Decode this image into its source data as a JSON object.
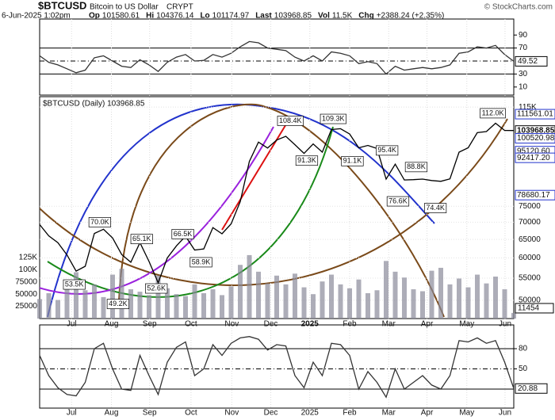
{
  "header": {
    "symbol": "$BTCUSD",
    "name": "Bitcoin to US Dollar",
    "exchange": "CRYPT",
    "date": "6-Jun-2025 1:02pm",
    "watermark": "© StockCharts.com",
    "stats": [
      {
        "label": "Op",
        "text": "101580.61"
      },
      {
        "label": "Hi",
        "text": "104376.14"
      },
      {
        "label": "Lo",
        "text": "101174.97"
      },
      {
        "label": "Last",
        "text": "103968.85"
      },
      {
        "label": "Vol",
        "text": "11.5K"
      },
      {
        "label": "Chg",
        "text": "+2388.24 (+2.35%)"
      }
    ]
  },
  "chart_data": [
    {
      "type": "line",
      "panel": "rsi",
      "color": "#333333",
      "values": [
        58,
        48,
        44,
        38,
        32,
        36,
        55,
        58,
        50,
        42,
        40,
        52,
        44,
        34,
        48,
        56,
        60,
        50,
        51,
        60,
        56,
        62,
        72,
        80,
        78,
        70,
        68,
        66,
        56,
        50,
        58,
        50,
        64,
        62,
        58,
        46,
        49,
        46,
        30,
        42,
        36,
        38,
        40,
        38,
        40,
        44,
        62,
        64,
        72,
        70,
        74,
        60,
        49.52
      ],
      "ylim": [
        0,
        100
      ],
      "yticks": [
        90,
        70,
        30,
        10
      ],
      "ref_lines": [
        70,
        50,
        30
      ],
      "last_value": 49.52
    },
    {
      "type": "line",
      "panel": "price",
      "color": "#000000",
      "log": true,
      "title": "$BTCUSD (Daily) 103968.85",
      "values": [
        69300,
        66000,
        64100,
        60800,
        56700,
        57900,
        66700,
        67900,
        65400,
        60900,
        58900,
        64100,
        59100,
        53900,
        60000,
        63200,
        65900,
        62100,
        62400,
        68400,
        66600,
        69500,
        76500,
        91000,
        98900,
        96400,
        99800,
        101400,
        97800,
        94200,
        98100,
        94700,
        104400,
        104800,
        102400,
        96500,
        97500,
        96200,
        84300,
        89900,
        84000,
        84100,
        84300,
        83800,
        83500,
        84400,
        94700,
        96500,
        103000,
        103500,
        107300,
        104000,
        103968.85
      ],
      "xlim": [
        0,
        52
      ],
      "xticks": [
        {
          "value": 3.5,
          "label": "Jul"
        },
        {
          "value": 7.87,
          "label": "Aug"
        },
        {
          "value": 12.06,
          "label": "Sep"
        },
        {
          "value": 16.6,
          "label": "Oct"
        },
        {
          "value": 21.07,
          "label": "Nov"
        },
        {
          "value": 25.35,
          "label": "Dec"
        },
        {
          "value": 29.63,
          "label": "2025"
        },
        {
          "value": 34.0,
          "label": "Feb"
        },
        {
          "value": 38.28,
          "label": "Mar"
        },
        {
          "value": 42.48,
          "label": "Apr"
        },
        {
          "value": 46.85,
          "label": "May"
        },
        {
          "value": 51.04,
          "label": "Jun"
        }
      ],
      "ylim": [
        46200,
        120300
      ],
      "yticks": [
        {
          "value": 115000,
          "label": "115K"
        },
        75000,
        70000,
        65000,
        60000,
        55000,
        50000
      ],
      "level_labels": [
        111561.01,
        103968.85,
        100520.98,
        {
          "value": 95120.6,
          "label": "95120.60"
        },
        {
          "value": 92417.2,
          "label": "92417.20"
        },
        78680.17
      ],
      "annotations": [
        {
          "label": "70.0K",
          "x": 6.6,
          "value": 70000
        },
        {
          "label": "65.1K",
          "x": 11.2,
          "value": 65100
        },
        {
          "label": "66.5K",
          "x": 15.7,
          "value": 66500
        },
        {
          "label": "108.4K",
          "x": 27.5,
          "value": 108400
        },
        {
          "label": "109.3K",
          "x": 32.2,
          "value": 109300
        },
        {
          "label": "95.4K",
          "x": 38.1,
          "value": 95400
        },
        {
          "label": "88.8K",
          "x": 41.3,
          "value": 88800
        },
        {
          "label": "112.0K",
          "x": 49.7,
          "value": 112000
        },
        {
          "label": "53.5K",
          "x": 3.8,
          "value": 53500
        },
        {
          "label": "49.2K",
          "x": 8.6,
          "value": 49200
        },
        {
          "label": "52.6K",
          "x": 12.8,
          "value": 52600
        },
        {
          "label": "58.9K",
          "x": 17.7,
          "value": 58900
        },
        {
          "label": "91.3K",
          "x": 29.3,
          "value": 91300
        },
        {
          "label": "91.1K",
          "x": 34.3,
          "value": 91100
        },
        {
          "label": "76.6K",
          "x": 39.3,
          "value": 76600
        },
        {
          "label": "74.4K",
          "x": 43.4,
          "value": 74400
        }
      ],
      "volume": {
        "color": "#8a8a9a",
        "values": [
          40000,
          52000,
          38000,
          61000,
          95000,
          58000,
          70000,
          44000,
          90000,
          102000,
          60000,
          55000,
          48000,
          88000,
          62000,
          50000,
          46000,
          70000,
          52000,
          60000,
          48000,
          66000,
          110000,
          130000,
          96000,
          72000,
          88000,
          70000,
          92000,
          64000,
          50000,
          76000,
          90000,
          70000,
          62000,
          80000,
          52000,
          58000,
          118000,
          96000,
          84000,
          60000,
          56000,
          98000,
          104000,
          70000,
          82000,
          64000,
          90000,
          72000,
          86000,
          60000,
          11454
        ],
        "y2lim": [
          0,
          454500
        ],
        "y2ticks": [
          {
            "value": 125000,
            "label": "125K"
          },
          {
            "value": 100000,
            "label": "100K"
          },
          75000,
          50000,
          25000
        ],
        "last_value": 11454
      }
    },
    {
      "type": "line",
      "panel": "stoch",
      "color": "#333333",
      "values": [
        70,
        40,
        22,
        12,
        10,
        30,
        80,
        88,
        50,
        20,
        18,
        70,
        40,
        12,
        60,
        82,
        90,
        40,
        50,
        86,
        70,
        88,
        96,
        98,
        94,
        78,
        86,
        84,
        40,
        22,
        60,
        40,
        88,
        86,
        70,
        20,
        46,
        30,
        8,
        50,
        20,
        30,
        40,
        26,
        20,
        40,
        92,
        90,
        96,
        88,
        92,
        60,
        20.88
      ],
      "ylim": [
        0,
        100
      ],
      "yticks": [
        80,
        50
      ],
      "ref_lines": [
        80,
        50,
        20
      ],
      "last_value": 20.88
    }
  ]
}
